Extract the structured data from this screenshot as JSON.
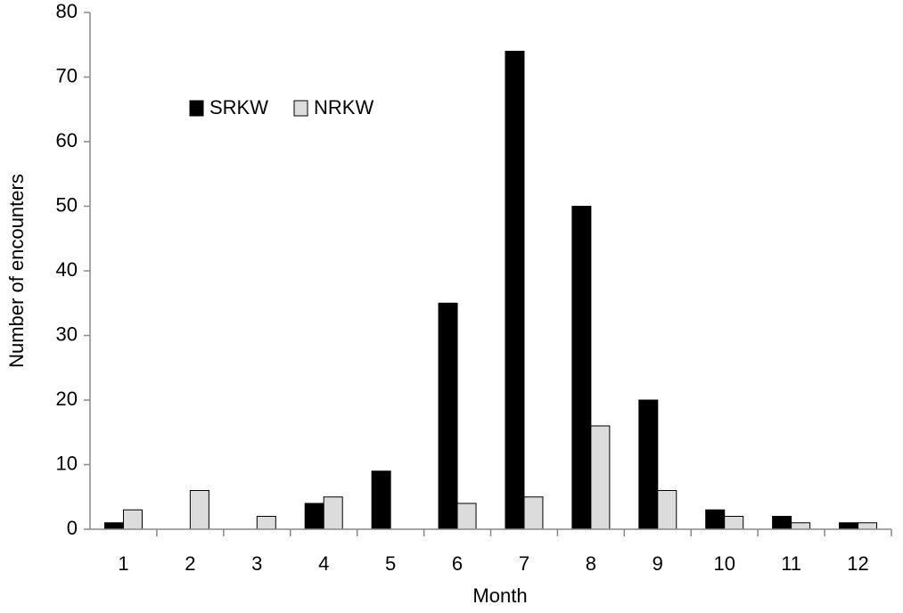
{
  "chart_data": {
    "type": "bar",
    "x_label": "Month",
    "y_label": "Number of encounters",
    "categories": [
      "1",
      "2",
      "3",
      "4",
      "5",
      "6",
      "7",
      "8",
      "9",
      "10",
      "11",
      "12"
    ],
    "series": [
      {
        "name": "SRKW",
        "color": "#000000",
        "values": [
          1,
          0,
          0,
          4,
          9,
          35,
          74,
          50,
          20,
          3,
          2,
          1
        ]
      },
      {
        "name": "NRKW",
        "color": "#dcdcdc",
        "values": [
          3,
          6,
          2,
          5,
          0,
          4,
          5,
          16,
          6,
          2,
          1,
          1
        ]
      }
    ],
    "ylim": [
      0,
      80
    ],
    "yticks": [
      0,
      10,
      20,
      30,
      40,
      50,
      60,
      70,
      80
    ],
    "grid": false,
    "legend": "upper-left"
  }
}
